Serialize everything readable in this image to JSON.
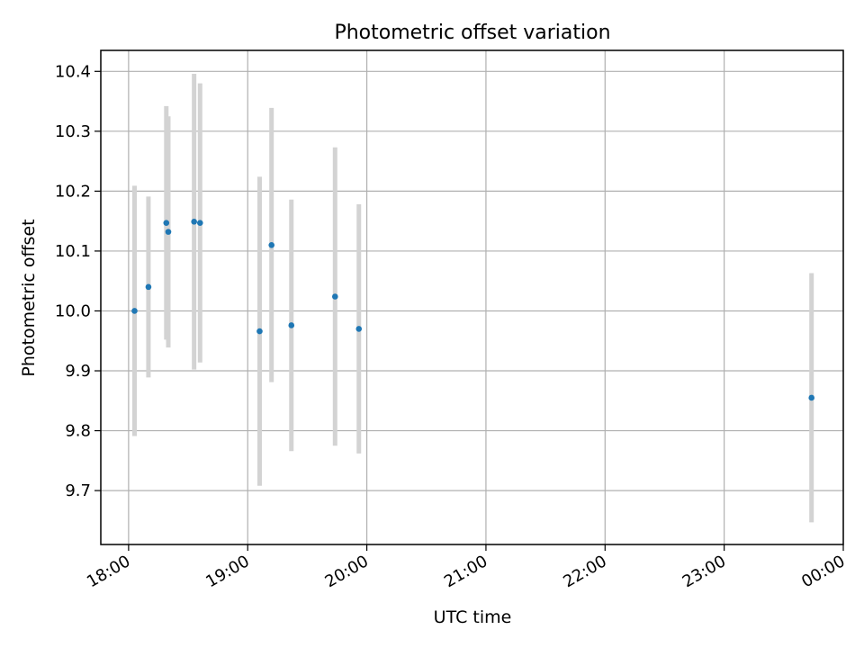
{
  "chart_data": {
    "type": "scatter",
    "title": "Photometric offset variation",
    "xlabel": "UTC time",
    "ylabel": "Photometric offset",
    "x_axis_type": "time",
    "xlim": [
      "17:46",
      "00:00"
    ],
    "ylim": [
      9.61,
      10.435
    ],
    "grid": true,
    "legend": "none",
    "x_ticks": [
      "18:00",
      "19:00",
      "20:00",
      "21:00",
      "22:00",
      "23:00",
      "00:00"
    ],
    "x_tick_times": [
      "18:00",
      "19:00",
      "20:00",
      "21:00",
      "22:00",
      "23:00",
      "24:00"
    ],
    "y_ticks": [
      9.7,
      9.8,
      9.9,
      10.0,
      10.1,
      10.2,
      10.3,
      10.4
    ],
    "y_tick_labels": [
      "9.7",
      "9.8",
      "9.9",
      "10.0",
      "10.1",
      "10.2",
      "10.3",
      "10.4"
    ],
    "x_tick_rotation_deg": 30,
    "colors": {
      "point": "#1f77b4",
      "errorbar": "#d3d3d3",
      "grid": "#b0b0b0"
    },
    "points": [
      {
        "time": "18:03",
        "y": 10.0,
        "err": 0.209
      },
      {
        "time": "18:10",
        "y": 10.04,
        "err": 0.151
      },
      {
        "time": "18:19",
        "y": 10.147,
        "err": 0.195
      },
      {
        "time": "18:20",
        "y": 10.132,
        "err": 0.193
      },
      {
        "time": "18:33",
        "y": 10.149,
        "err": 0.247
      },
      {
        "time": "18:36",
        "y": 10.147,
        "err": 0.233
      },
      {
        "time": "19:06",
        "y": 9.966,
        "err": 0.258
      },
      {
        "time": "19:12",
        "y": 10.11,
        "err": 0.229
      },
      {
        "time": "19:22",
        "y": 9.976,
        "err": 0.21
      },
      {
        "time": "19:44",
        "y": 10.024,
        "err": 0.249
      },
      {
        "time": "19:56",
        "y": 9.97,
        "err": 0.208
      },
      {
        "time": "23:44",
        "y": 9.855,
        "err": 0.208
      }
    ]
  }
}
